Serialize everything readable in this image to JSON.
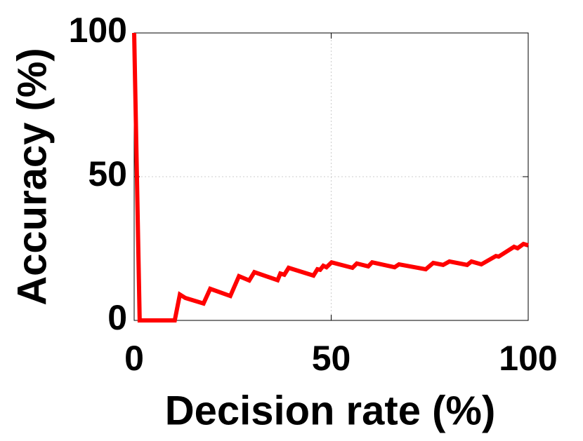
{
  "chart_data": {
    "type": "line",
    "x_label": "Decision rate (%)",
    "y_label": "Accuracy (%)",
    "xlim": [
      0,
      100
    ],
    "ylim": [
      0,
      100
    ],
    "xticks": [
      0,
      50,
      100
    ],
    "yticks": [
      0,
      50,
      100
    ],
    "grid": true,
    "series": [
      {
        "name": "Accuracy",
        "color": "#ff0000",
        "x": [
          0,
          1.4,
          10.3,
          11.6,
          13,
          17.6,
          19.3,
          24.4,
          26.6,
          29.2,
          30.5,
          36.4,
          37.1,
          38.1,
          39.2,
          45.5,
          46.5,
          47.2,
          48,
          48.8,
          50.1,
          55.4,
          56.5,
          59.4,
          60.4,
          66.1,
          67.2,
          74,
          75.9,
          78.4,
          80,
          84.5,
          85.6,
          88.1,
          91.8,
          92.5,
          96.4,
          97.3,
          98.8,
          100
        ],
        "values": [
          100,
          0,
          0,
          9,
          7.8,
          5.9,
          11,
          8.5,
          15.4,
          13.9,
          16.8,
          14,
          16.3,
          15.9,
          18.3,
          15.6,
          17.8,
          17.6,
          19,
          18.5,
          20.2,
          18.3,
          19.8,
          18.8,
          20.2,
          18.5,
          19.5,
          17.8,
          20,
          19.3,
          20.5,
          19.3,
          20.5,
          19.5,
          22.4,
          22.2,
          25.6,
          25.1,
          26.6,
          26.1
        ]
      }
    ]
  }
}
